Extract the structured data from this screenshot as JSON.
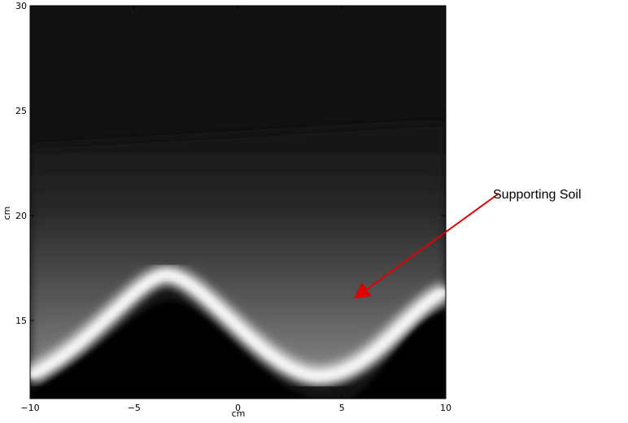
{
  "chart_data": {
    "type": "image",
    "xlabel": "cm",
    "ylabel": "cm",
    "xlim": [
      -10,
      10
    ],
    "ylim": [
      11.28,
      30
    ],
    "xticks": [
      {
        "value": -10,
        "label": "−10"
      },
      {
        "value": -5,
        "label": "−5"
      },
      0,
      5,
      10
    ],
    "yticks": [
      15,
      20,
      25,
      30
    ],
    "annotation": "Supporting Soil"
  }
}
